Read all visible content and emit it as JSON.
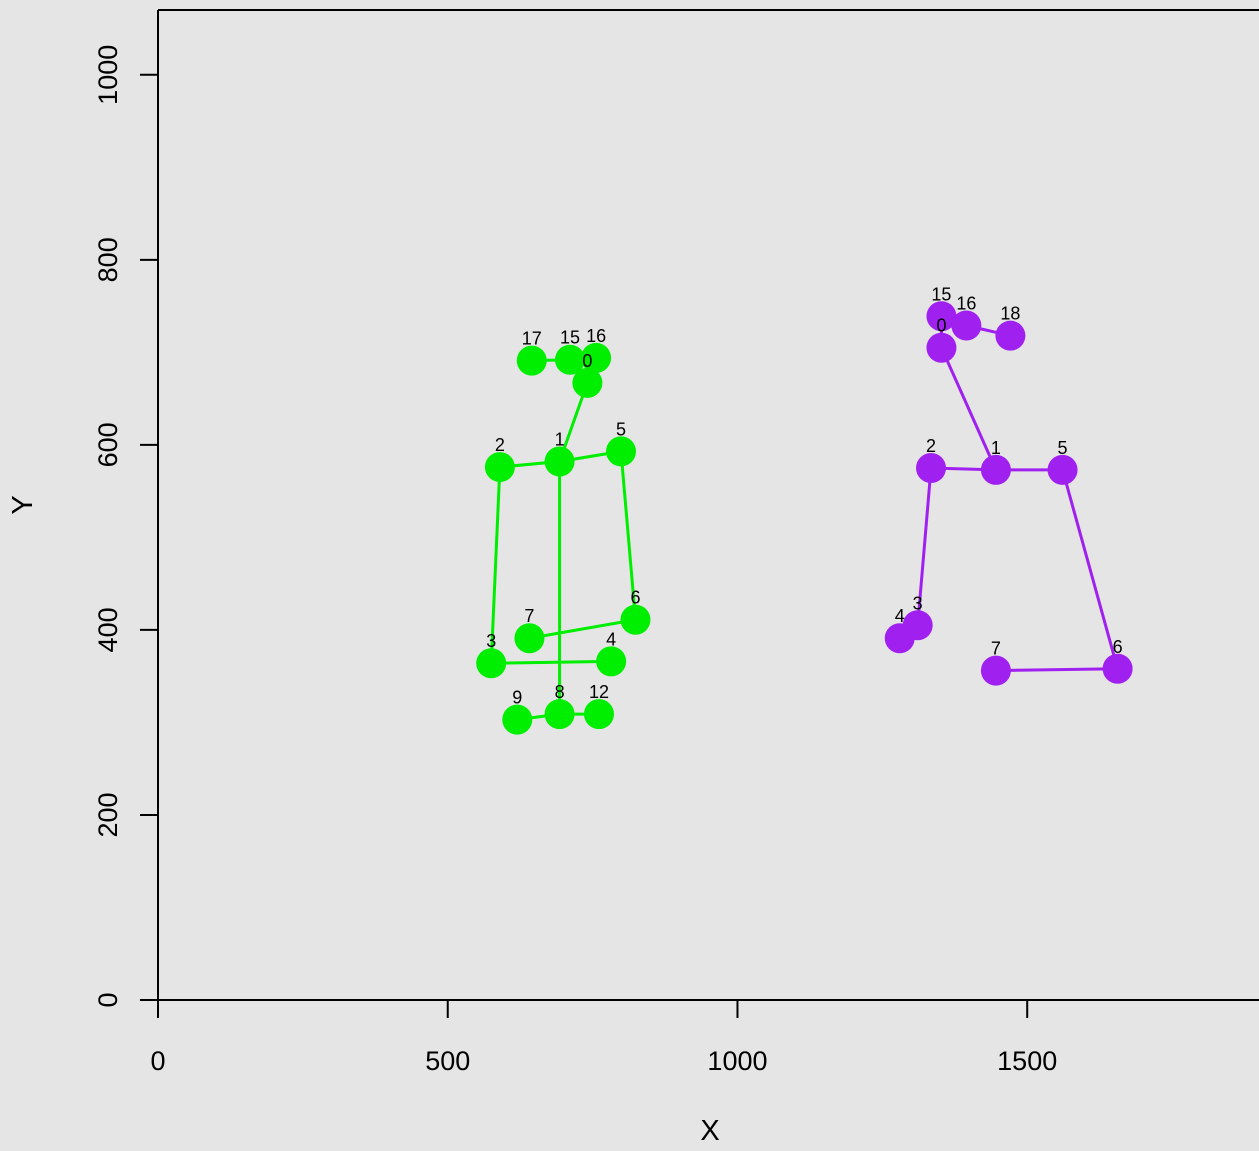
{
  "chart_data": {
    "type": "scatter",
    "title": "",
    "xlabel": "X",
    "ylabel": "Y",
    "xlim": [
      0,
      1900
    ],
    "ylim": [
      0,
      1070
    ],
    "x_ticks": [
      0,
      500,
      1000,
      1500
    ],
    "x_tick_labels": [
      "0",
      "500",
      "1000",
      "1500"
    ],
    "y_ticks": [
      0,
      200,
      400,
      600,
      800,
      1000
    ],
    "y_tick_labels": [
      "0",
      "200",
      "400",
      "600",
      "800",
      "1000"
    ],
    "grid": false,
    "background_color": "#e5e5e5",
    "series": [
      {
        "color": "#00ee00",
        "points": [
          {
            "label": "0",
            "x": 741,
            "y": 667
          },
          {
            "label": "1",
            "x": 693,
            "y": 582
          },
          {
            "label": "2",
            "x": 590,
            "y": 576
          },
          {
            "label": "3",
            "x": 575,
            "y": 364
          },
          {
            "label": "4",
            "x": 782,
            "y": 366
          },
          {
            "label": "5",
            "x": 799,
            "y": 593
          },
          {
            "label": "6",
            "x": 824,
            "y": 411
          },
          {
            "label": "7",
            "x": 641,
            "y": 391
          },
          {
            "label": "8",
            "x": 693,
            "y": 309
          },
          {
            "label": "9",
            "x": 620,
            "y": 303
          },
          {
            "label": "12",
            "x": 761,
            "y": 309
          },
          {
            "label": "15",
            "x": 711,
            "y": 692
          },
          {
            "label": "16",
            "x": 756,
            "y": 694
          },
          {
            "label": "17",
            "x": 645,
            "y": 691
          }
        ],
        "connections": [
          [
            "1",
            "0"
          ],
          [
            "1",
            "2"
          ],
          [
            "1",
            "5"
          ],
          [
            "2",
            "3"
          ],
          [
            "3",
            "4"
          ],
          [
            "5",
            "6"
          ],
          [
            "6",
            "7"
          ],
          [
            "1",
            "8"
          ],
          [
            "8",
            "9"
          ],
          [
            "8",
            "12"
          ],
          [
            "17",
            "15"
          ],
          [
            "15",
            "16"
          ]
        ]
      },
      {
        "color": "#a020f0",
        "points": [
          {
            "label": "0",
            "x": 1352,
            "y": 705
          },
          {
            "label": "1",
            "x": 1446,
            "y": 573
          },
          {
            "label": "2",
            "x": 1334,
            "y": 575
          },
          {
            "label": "3",
            "x": 1311,
            "y": 405
          },
          {
            "label": "4",
            "x": 1280,
            "y": 391
          },
          {
            "label": "5",
            "x": 1561,
            "y": 573
          },
          {
            "label": "6",
            "x": 1656,
            "y": 358
          },
          {
            "label": "7",
            "x": 1446,
            "y": 356
          },
          {
            "label": "15",
            "x": 1352,
            "y": 739
          },
          {
            "label": "16",
            "x": 1395,
            "y": 729
          },
          {
            "label": "18",
            "x": 1471,
            "y": 718
          }
        ],
        "connections": [
          [
            "0",
            "1"
          ],
          [
            "1",
            "2"
          ],
          [
            "2",
            "3"
          ],
          [
            "3",
            "4"
          ],
          [
            "1",
            "5"
          ],
          [
            "5",
            "6"
          ],
          [
            "6",
            "7"
          ],
          [
            "0",
            "15"
          ],
          [
            "15",
            "16"
          ],
          [
            "16",
            "18"
          ]
        ]
      }
    ]
  }
}
